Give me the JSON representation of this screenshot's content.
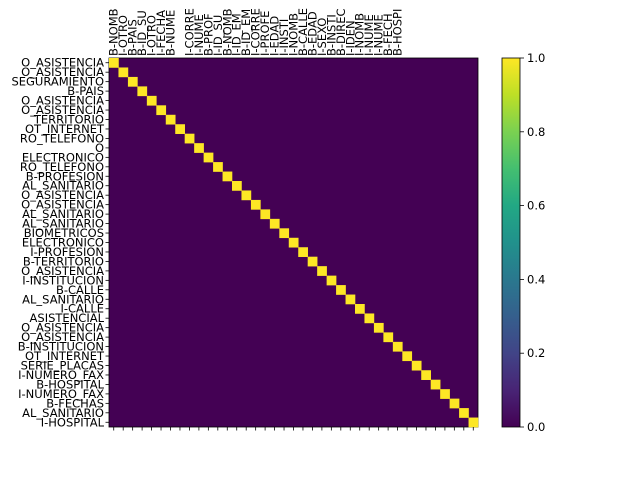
{
  "chart_data": {
    "type": "heatmap",
    "title": "",
    "xlabel": "",
    "ylabel": "",
    "row_labels": [
      "O_ASISTENCIA",
      "O_ASISTENCIA",
      "SEGURAMIENTO",
      "B-PAIS",
      "O_ASISTENCIA",
      "O_ASISTENCIA",
      "TERRITORIO",
      "OT_INTERNET",
      "RO_TELEFONO",
      "O",
      "ELECTRONICO",
      "RO_TELEFONO",
      "B-PROFESION",
      "AL_SANITARIO",
      "O_ASISTENCIA",
      "O_ASISTENCIA",
      "AL_SANITARIO",
      "AL_SANITARIO",
      "BIOMETRICOS",
      "ELECTRONICO",
      "I-PROFESION",
      "B-TERRITORIO",
      "O_ASISTENCIA",
      "I-INSTITUCION",
      "B-CALLE",
      "AL_SANITARIO",
      "I-CALLE",
      "ASISTENCIAL",
      "O_ASISTENCIA",
      "O_ASISTENCIA",
      "B-INSTITUCION",
      "OT_INTERNET",
      "SERIE_PLACAS",
      "I-NUMERO_FAX",
      "B-HOSPITAL",
      "I-NUMERO_FAX",
      "B-FECHAS",
      "AL_SANITARIO",
      "I-HOSPITAL"
    ],
    "column_labels": [
      "B-NOMB",
      "I-OTRO",
      "B-PAIS",
      "B-ID_SU",
      "I-OTRO",
      "I-FECHA",
      "B-NUME",
      "",
      "I-CORRE",
      "I-NUME",
      "B-PROF",
      "I-ID_SU",
      "B-NOMB",
      "I-ID_EM",
      "B-ID_EM",
      "I-CORRE",
      "I-PROFE",
      "I-EDAD",
      "I-INSTI",
      "I-NOMB",
      "B-CALLE",
      "B-EDAD",
      "I-SEXO",
      "B-INSTI",
      "B-DIREC",
      "I-IDEN",
      "I-NOMB",
      "I-NUME",
      "I-NUME",
      "B-FECH",
      "B-HOSPI"
    ],
    "matrix_rule": "diagonal value 1.0, all other cells 0.0",
    "diagonal_value": 1.0,
    "off_diagonal_value": 0.0,
    "colorbar": {
      "ticks": [
        "0.0",
        "0.2",
        "0.4",
        "0.6",
        "0.8",
        "1.0"
      ],
      "range": [
        0.0,
        1.0
      ],
      "colormap": "viridis"
    },
    "colors": {
      "low": "#440154",
      "high": "#fde725"
    }
  }
}
